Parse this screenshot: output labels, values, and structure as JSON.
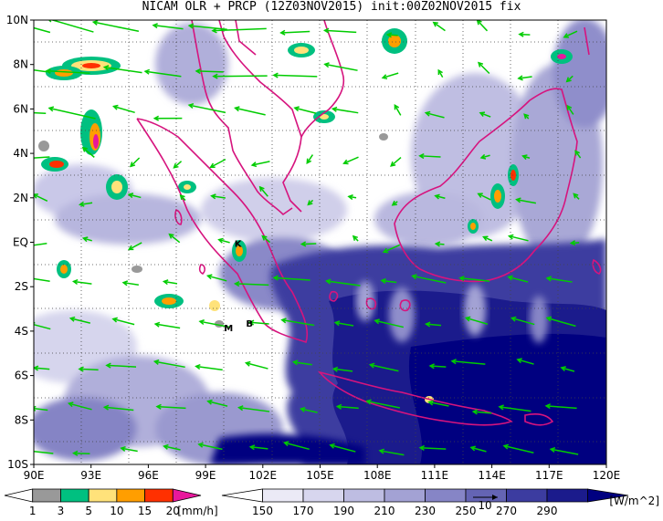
{
  "title": "NICAM OLR + PRCP (12Z03NOV2015) init:00Z02NOV2015 fix",
  "lat_labels": [
    "10N",
    "8N",
    "6N",
    "4N",
    "2N",
    "EQ",
    "2S",
    "4S",
    "6S",
    "8S",
    "10S"
  ],
  "lon_labels": [
    "90E",
    "93E",
    "96E",
    "99E",
    "102E",
    "105E",
    "108E",
    "111E",
    "114E",
    "117E",
    "120E"
  ],
  "map_extent": {
    "lon": [
      90,
      120
    ],
    "lat": [
      -10,
      10
    ]
  },
  "markers": [
    {
      "id": "K",
      "label": "K",
      "lon": 100.7,
      "lat": -0.2
    },
    {
      "id": "M",
      "label": "M",
      "lon": 100.2,
      "lat": -4.0
    },
    {
      "id": "B",
      "label": "B",
      "lon": 101.3,
      "lat": -3.8
    }
  ],
  "prcp_colorbar": {
    "values": [
      "1",
      "3",
      "5",
      "10",
      "15",
      "20"
    ],
    "unit": "[mm/h]",
    "colors": [
      "#ffffff",
      "#999999",
      "#00c080",
      "#ffe27a",
      "#ff9e00",
      "#ff3000",
      "#e8189c"
    ]
  },
  "olr_colorbar": {
    "values": [
      "150",
      "170",
      "190",
      "210",
      "230",
      "250",
      "270",
      "290"
    ],
    "unit": "[W/m^2]",
    "colors": [
      "#ffffff",
      "#ebeaf6",
      "#d7d6ee",
      "#bebde2",
      "#a3a2d4",
      "#8685c6",
      "#6464b4",
      "#3c3ca0",
      "#1b1b8c",
      "#000080"
    ]
  },
  "vector_label": "10",
  "colors": {
    "wind": "#00cc00",
    "coast": "#d6147e",
    "olr_dark": "#00007f",
    "frame": "#000000"
  }
}
